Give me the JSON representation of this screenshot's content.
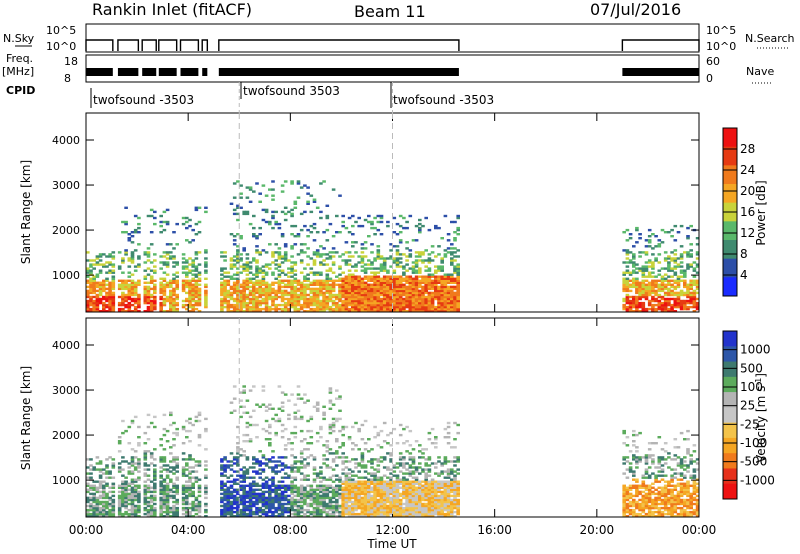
{
  "header": {
    "station": "Rankin Inlet (fitACF)",
    "beam": "Beam 11",
    "date": "07/Jul/2016"
  },
  "params": {
    "nsky_label": "N.Sky",
    "nsky_ticks": [
      "10^5",
      "10^0"
    ],
    "nsearch_label": "N.Search",
    "nsearch_ticks": [
      "10^5",
      "10^0"
    ],
    "freq_label": [
      "Freq.",
      "[MHz]"
    ],
    "freq_ticks": [
      "18",
      "8"
    ],
    "nave_label": "Nave",
    "nave_ticks": [
      "60",
      "0"
    ],
    "cpid_label": "CPID",
    "cpid_segments": [
      {
        "name": "twofsound -3503",
        "start_h": 0,
        "end_h": 6
      },
      {
        "name": "twofsound 3503",
        "start_h": 6,
        "end_h": 12
      },
      {
        "name": "twofsound -3503",
        "start_h": 12,
        "end_h": 24
      }
    ],
    "data_segments_h": [
      [
        0.0,
        1.05
      ],
      [
        1.25,
        2.05
      ],
      [
        2.2,
        2.75
      ],
      [
        2.85,
        3.55
      ],
      [
        3.7,
        4.4
      ],
      [
        4.55,
        4.75
      ],
      [
        5.2,
        14.6
      ],
      [
        21.0,
        24.0
      ]
    ]
  },
  "chart_data": [
    {
      "type": "heatmap",
      "name": "power",
      "xlabel": "",
      "ylabel": "Slant Range [km]",
      "xlim": [
        0,
        24
      ],
      "ylim": [
        180,
        4600
      ],
      "yticks": [
        1000,
        2000,
        3000,
        4000
      ],
      "colorbar_label": "Power [dB]",
      "colorbar_ticks": [
        "4",
        "8",
        "12",
        "16",
        "20",
        "24",
        "28"
      ],
      "colors": [
        "#1a2bff",
        "#2d4fa8",
        "#3f8a6f",
        "#5ab86a",
        "#c9d33a",
        "#f5a623",
        "#f07a1c",
        "#e63a12",
        "#ee1111"
      ]
    },
    {
      "type": "heatmap",
      "name": "velocity",
      "xlabel": "Time UT",
      "ylabel": "Slant Range [km]",
      "xlim": [
        0,
        24
      ],
      "ylim": [
        180,
        4600
      ],
      "xticks": [
        "00:00",
        "04:00",
        "08:00",
        "12:00",
        "16:00",
        "20:00",
        "00:00"
      ],
      "yticks": [
        1000,
        2000,
        3000,
        4000
      ],
      "colorbar_label": "Velocity [m s^-1]",
      "colorbar_ticks": [
        "1000",
        "500",
        "100",
        "25",
        "-25",
        "-100",
        "-500",
        "-1000"
      ],
      "colors": [
        "#2233cc",
        "#2d56a8",
        "#3e7a6f",
        "#5cab5c",
        "#b4b4b4",
        "#c6c6c6",
        "#f3c34a",
        "#f5a623",
        "#f07a1c",
        "#e6301a",
        "#ee1111"
      ]
    }
  ]
}
